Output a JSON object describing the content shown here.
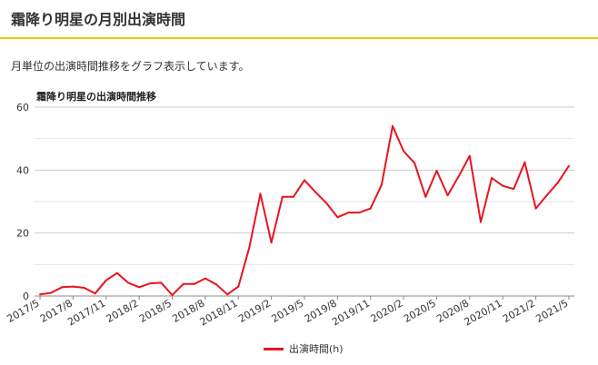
{
  "page": {
    "title": "霜降り明星の月別出演時間",
    "description": "月単位の出演時間推移をグラフ表示しています。"
  },
  "colors": {
    "accent": "#f2c500",
    "series": "#e8141c",
    "grid": "#dddddd"
  },
  "chart_data": {
    "type": "line",
    "title": "霜降り明星の出演時間推移",
    "xlabel": "",
    "ylabel": "",
    "ylim": [
      0,
      60
    ],
    "yticks": [
      0,
      20,
      40,
      60
    ],
    "grid": true,
    "legend_position": "bottom",
    "x": [
      "2017/5",
      "2017/6",
      "2017/7",
      "2017/8",
      "2017/9",
      "2017/10",
      "2017/11",
      "2017/12",
      "2018/1",
      "2018/2",
      "2018/3",
      "2018/4",
      "2018/5",
      "2018/6",
      "2018/7",
      "2018/8",
      "2018/9",
      "2018/10",
      "2018/11",
      "2018/12",
      "2019/1",
      "2019/2",
      "2019/3",
      "2019/4",
      "2019/5",
      "2019/6",
      "2019/7",
      "2019/8",
      "2019/9",
      "2019/10",
      "2019/11",
      "2019/12",
      "2020/1",
      "2020/2",
      "2020/3",
      "2020/4",
      "2020/5",
      "2020/6",
      "2020/7",
      "2020/8",
      "2020/9",
      "2020/10",
      "2020/11",
      "2020/12",
      "2021/1",
      "2021/2",
      "2021/3",
      "2021/4",
      "2021/5"
    ],
    "x_tick_labels": [
      "2017/5",
      "2017/8",
      "2017/11",
      "2018/2",
      "2018/5",
      "2018/8",
      "2018/11",
      "2019/2",
      "2019/5",
      "2019/8",
      "2019/11",
      "2020/2",
      "2020/5",
      "2020/8",
      "2020/11",
      "2021/2",
      "2021/5"
    ],
    "series": [
      {
        "name": "出演時間(h)",
        "values": [
          0.5,
          1,
          2.8,
          3,
          2.6,
          0.8,
          5,
          7.3,
          4.2,
          2.8,
          4,
          4.2,
          0.3,
          3.8,
          3.8,
          5.6,
          3.7,
          0.5,
          3,
          15.5,
          32.5,
          17,
          31.5,
          31.5,
          36.8,
          33,
          29.5,
          25,
          26.5,
          26.5,
          27.8,
          35.3,
          54,
          46,
          42.2,
          31.5,
          39.8,
          32,
          38,
          44.5,
          23.5,
          37.5,
          35,
          34,
          42.5,
          27.8,
          32,
          36,
          41.3
        ]
      }
    ]
  }
}
